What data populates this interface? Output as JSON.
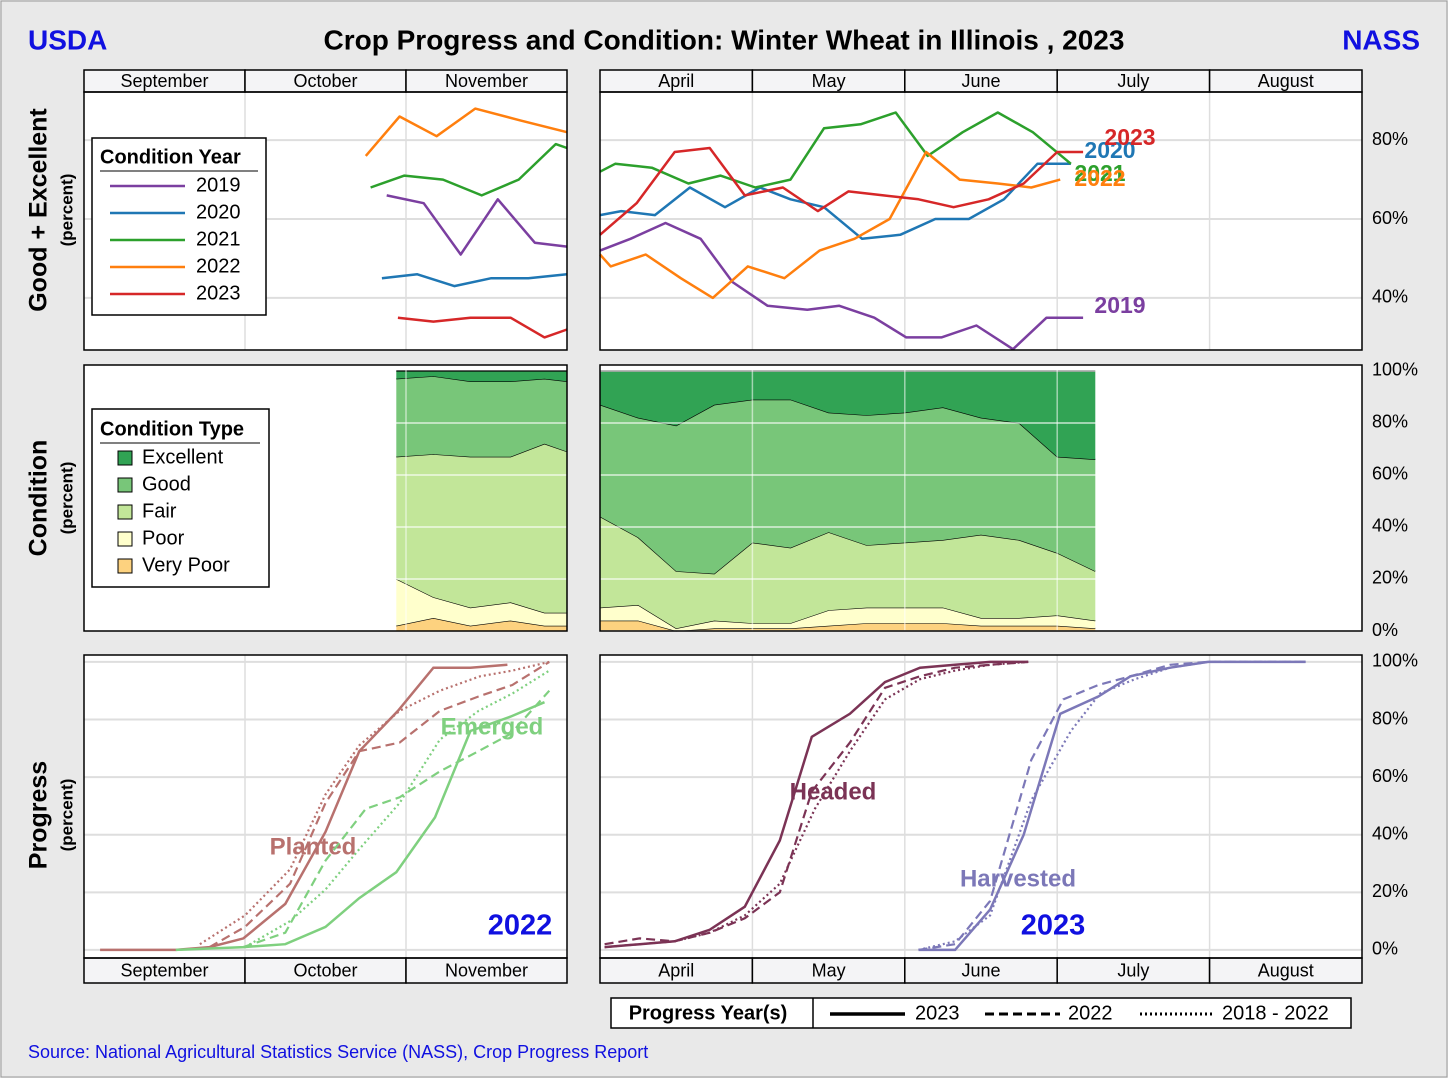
{
  "header": {
    "left": "USDA",
    "title": "Crop Progress and Condition: Winter Wheat in Illinois , 2023",
    "right": "NASS"
  },
  "source": "Source: National Agricultural Statistics Service (NASS), Crop Progress Report",
  "progress_legend": {
    "title": "Progress Year(s)",
    "entries": [
      {
        "label": "2023",
        "style": "solid"
      },
      {
        "label": "2022",
        "style": "dashed"
      },
      {
        "label": "2018 - 2022",
        "style": "dotted"
      }
    ]
  },
  "chart_data": [
    {
      "type": "line",
      "ylabel": "Good + Excellent",
      "ylabel_sub": "(percent)",
      "months": [
        "September",
        "October",
        "November"
      ],
      "legend_title": "Condition Year",
      "xlim": [
        0,
        3
      ],
      "ylim": [
        26.8,
        92.2
      ],
      "ygrid": [
        40,
        60,
        80
      ],
      "series": [
        {
          "name": "2019",
          "color": "#7b3fa0",
          "x": [
            1.88,
            2.11,
            2.34,
            2.57,
            2.8,
            3.0
          ],
          "values": [
            66,
            64,
            51,
            65,
            54,
            53
          ]
        },
        {
          "name": "2020",
          "color": "#1f77b4",
          "x": [
            1.85,
            2.07,
            2.3,
            2.53,
            2.76,
            3.0
          ],
          "values": [
            45,
            46,
            43,
            45,
            45,
            46
          ]
        },
        {
          "name": "2021",
          "color": "#2ca02c",
          "x": [
            1.78,
            1.99,
            2.23,
            2.47,
            2.7,
            2.93,
            3.0
          ],
          "values": [
            68,
            71,
            70,
            66,
            70,
            79,
            78
          ]
        },
        {
          "name": "2022",
          "color": "#ff7f0e",
          "x": [
            1.75,
            1.96,
            2.19,
            2.43,
            2.71,
            3.0
          ],
          "values": [
            76,
            86,
            81,
            88,
            85,
            82
          ]
        },
        {
          "name": "2023",
          "color": "#d62728",
          "x": [
            1.95,
            2.17,
            2.4,
            2.65,
            2.86,
            3.0
          ],
          "values": [
            35,
            34,
            35,
            35,
            30,
            32
          ]
        }
      ]
    },
    {
      "type": "line",
      "months": [
        "April",
        "May",
        "June",
        "July",
        "August"
      ],
      "xlim": [
        0,
        5
      ],
      "ylim": [
        26.8,
        92.2
      ],
      "yticks": [
        {
          "value": 40,
          "label": "40%"
        },
        {
          "value": 60,
          "label": "60%"
        },
        {
          "value": 80,
          "label": "80%"
        }
      ],
      "series": [
        {
          "name": "2019",
          "color": "#7b3fa0",
          "x": [
            0,
            0.2,
            0.43,
            0.66,
            0.87,
            1.1,
            1.36,
            1.57,
            1.8,
            2.01,
            2.24,
            2.47,
            2.71,
            2.93,
            3.17
          ],
          "values": [
            52,
            55,
            59,
            55,
            44,
            38,
            37,
            38,
            35,
            30,
            30,
            33,
            27,
            35,
            35
          ]
        },
        {
          "name": "2020",
          "color": "#1f77b4",
          "x": [
            0,
            0.14,
            0.36,
            0.59,
            0.82,
            1.05,
            1.25,
            1.47,
            1.72,
            1.97,
            2.2,
            2.42,
            2.65,
            2.87,
            3.09
          ],
          "values": [
            61,
            62,
            61,
            68,
            63,
            68,
            65,
            63,
            55,
            56,
            60,
            60,
            65,
            74,
            74
          ]
        },
        {
          "name": "2021",
          "color": "#2ca02c",
          "x": [
            0,
            0.1,
            0.34,
            0.58,
            0.79,
            1.02,
            1.25,
            1.47,
            1.71,
            1.94,
            2.15,
            2.38,
            2.61,
            2.84,
            3.09
          ],
          "values": [
            72,
            74,
            73,
            69,
            71,
            68,
            70,
            83,
            84,
            87,
            76,
            82,
            87,
            82,
            74
          ]
        },
        {
          "name": "2022",
          "color": "#ff7f0e",
          "x": [
            0,
            0.07,
            0.3,
            0.53,
            0.74,
            0.97,
            1.21,
            1.44,
            1.67,
            1.9,
            2.14,
            2.36,
            2.61,
            2.83,
            3.02
          ],
          "values": [
            51,
            48,
            51,
            45,
            40,
            48,
            45,
            52,
            55,
            60,
            77,
            70,
            69,
            68,
            70
          ]
        },
        {
          "name": "2023",
          "color": "#d62728",
          "x": [
            0,
            0.24,
            0.49,
            0.72,
            0.95,
            1.2,
            1.43,
            1.63,
            1.86,
            2.09,
            2.32,
            2.55,
            2.78,
            3.0,
            3.17
          ],
          "values": [
            56,
            64,
            77,
            78,
            66,
            68,
            62,
            67,
            66,
            65,
            63,
            65,
            69,
            77,
            77
          ]
        }
      ]
    },
    {
      "type": "stacked_area",
      "ylabel": "Condition",
      "ylabel_sub": "(percent)",
      "legend_title": "Condition Type",
      "xlim": [
        0,
        3
      ],
      "ylim": [
        0,
        102.3
      ],
      "ygrid": [
        20,
        40,
        60,
        80
      ],
      "x": [
        1.94,
        2.17,
        2.4,
        2.65,
        2.86,
        3.0
      ],
      "series": [
        {
          "name": "Excellent",
          "color": "#31a354",
          "values": [
            3,
            2,
            4,
            4,
            3,
            4
          ]
        },
        {
          "name": "Good",
          "color": "#78c679",
          "values": [
            30,
            30,
            29,
            29,
            25,
            27
          ]
        },
        {
          "name": "Fair",
          "color": "#c2e699",
          "values": [
            47,
            55,
            58,
            56,
            65,
            62
          ]
        },
        {
          "name": "Poor",
          "color": "#ffffcc",
          "values": [
            18,
            8,
            7,
            7,
            5,
            5
          ]
        },
        {
          "name": "Very Poor",
          "color": "#fdd27f",
          "values": [
            2,
            5,
            2,
            4,
            2,
            2
          ]
        }
      ]
    },
    {
      "type": "stacked_area",
      "xlim": [
        0,
        5
      ],
      "ylim": [
        0,
        102.3
      ],
      "yticks": [
        {
          "value": 0,
          "label": "0%"
        },
        {
          "value": 20,
          "label": "20%"
        },
        {
          "value": 40,
          "label": "40%"
        },
        {
          "value": 60,
          "label": "60%"
        },
        {
          "value": 80,
          "label": "80%"
        },
        {
          "value": 100,
          "label": "100%"
        }
      ],
      "x": [
        0,
        0.25,
        0.5,
        0.75,
        1.0,
        1.25,
        1.5,
        1.75,
        2.0,
        2.25,
        2.5,
        2.75,
        3.0,
        3.25
      ],
      "series": [
        {
          "color": "#31a354",
          "values": [
            13,
            18,
            21,
            13,
            11,
            11,
            16,
            17,
            16,
            14,
            18,
            20,
            33,
            34
          ]
        },
        {
          "color": "#78c679",
          "values": [
            43,
            46,
            56,
            65,
            55,
            57,
            46,
            50,
            50,
            51,
            45,
            45,
            37,
            43
          ]
        },
        {
          "color": "#c2e699",
          "values": [
            35,
            26,
            22,
            18,
            31,
            29,
            30,
            24,
            25,
            26,
            32,
            30,
            24,
            19
          ]
        },
        {
          "color": "#ffffcc",
          "values": [
            5,
            6,
            1,
            3,
            2,
            2,
            6,
            6,
            6,
            6,
            3,
            3,
            4,
            3
          ]
        },
        {
          "color": "#fdd27f",
          "values": [
            4,
            4,
            0,
            1,
            1,
            1,
            2,
            3,
            3,
            3,
            2,
            2,
            2,
            1
          ]
        }
      ]
    },
    {
      "type": "progress",
      "ylabel": "Progress",
      "ylabel_sub": "(percent)",
      "months": [
        "September",
        "October",
        "November"
      ],
      "season_label": "2022",
      "xlim": [
        0,
        3
      ],
      "ylim": [
        -2.8,
        102.4
      ],
      "ygrid": [
        0,
        20,
        40,
        60,
        80,
        100
      ],
      "series": [
        {
          "name": "Planted",
          "color": "#b8716e",
          "lines": [
            {
              "style": "solid",
              "x": [
                0.1,
                0.57,
                0.78,
                0.99,
                1.25,
                1.5,
                1.71,
                1.95,
                2.17,
                2.4,
                2.63
              ],
              "values": [
                0,
                0,
                1,
                4,
                16,
                41,
                69,
                83,
                98,
                98,
                99
              ]
            },
            {
              "style": "dashed",
              "x": [
                0.78,
                1.0,
                1.28,
                1.5,
                1.71,
                1.96,
                2.21,
                2.45,
                2.66,
                2.89
              ],
              "values": [
                1,
                8,
                23,
                51,
                69,
                72,
                83,
                88,
                92,
                100
              ]
            },
            {
              "style": "dotted",
              "x": [
                0.72,
                1.0,
                1.28,
                1.5,
                1.71,
                1.96,
                2.21,
                2.46,
                2.66,
                2.89
              ],
              "values": [
                2,
                12,
                28,
                54,
                71,
                83,
                90,
                95,
                97,
                100
              ]
            }
          ]
        },
        {
          "name": "Emerged",
          "color": "#7fd07f",
          "lines": [
            {
              "style": "solid",
              "x": [
                0.57,
                0.99,
                1.25,
                1.5,
                1.71,
                1.94,
                2.18,
                2.4,
                2.65,
                2.86
              ],
              "values": [
                0,
                1,
                2,
                8,
                18,
                27,
                46,
                76,
                81,
                86
              ]
            },
            {
              "style": "dashed",
              "x": [
                0.99,
                1.25,
                1.5,
                1.75,
                1.96,
                2.21,
                2.45,
                2.65,
                2.89
              ],
              "values": [
                1,
                6,
                31,
                49,
                53,
                62,
                69,
                75,
                90
              ]
            },
            {
              "style": "dotted",
              "x": [
                1.0,
                1.28,
                1.5,
                1.71,
                1.96,
                2.21,
                2.45,
                2.66,
                2.89
              ],
              "values": [
                1,
                10,
                21,
                35,
                51,
                73,
                83,
                89,
                97
              ]
            }
          ]
        }
      ]
    },
    {
      "type": "progress",
      "months": [
        "April",
        "May",
        "June",
        "July",
        "August"
      ],
      "season_label": "2023",
      "xlim": [
        0,
        5
      ],
      "ylim": [
        -2.8,
        102.4
      ],
      "yticks": [
        {
          "value": 0,
          "label": "0%"
        },
        {
          "value": 20,
          "label": "20%"
        },
        {
          "value": 40,
          "label": "40%"
        },
        {
          "value": 60,
          "label": "60%"
        },
        {
          "value": 80,
          "label": "80%"
        },
        {
          "value": 100,
          "label": "100%"
        }
      ],
      "series": [
        {
          "name": "Headed",
          "color": "#7b3355",
          "lines": [
            {
              "style": "solid",
              "x": [
                0.03,
                0.26,
                0.49,
                0.72,
                0.95,
                1.18,
                1.39,
                1.64,
                1.87,
                2.1,
                2.33,
                2.56,
                2.81
              ],
              "values": [
                1,
                2,
                3,
                7,
                15,
                38,
                74,
                82,
                93,
                98,
                99,
                100,
                100
              ]
            },
            {
              "style": "dashed",
              "x": [
                0.03,
                0.26,
                0.49,
                0.72,
                0.95,
                1.18,
                1.39,
                1.64,
                1.87,
                2.1,
                2.33,
                2.56,
                2.81
              ],
              "values": [
                2,
                4,
                3,
                6,
                11,
                20,
                55,
                72,
                91,
                95,
                98,
                99,
                100
              ]
            },
            {
              "style": "dotted",
              "x": [
                0.03,
                0.26,
                0.49,
                0.72,
                0.95,
                1.18,
                1.41,
                1.64,
                1.87,
                2.1,
                2.33,
                2.56,
                2.81
              ],
              "values": [
                1,
                2,
                3,
                6,
                12,
                23,
                49,
                69,
                87,
                94,
                97,
                99,
                100
              ]
            }
          ]
        },
        {
          "name": "Harvested",
          "color": "#7c78b8",
          "lines": [
            {
              "style": "solid",
              "x": [
                2.09,
                2.33,
                2.56,
                2.78,
                3.02,
                3.27,
                3.48,
                3.74,
                3.99,
                4.23,
                4.63
              ],
              "values": [
                0,
                0,
                14,
                40,
                82,
                88,
                95,
                98,
                100,
                100,
                100
              ]
            },
            {
              "style": "dashed",
              "x": [
                2.09,
                2.33,
                2.56,
                2.83,
                3.04,
                3.27,
                3.48,
                3.74,
                3.99,
                4.23,
                4.63
              ],
              "values": [
                0,
                2,
                17,
                66,
                87,
                92,
                95,
                99,
                100,
                100,
                100
              ]
            },
            {
              "style": "dotted",
              "x": [
                2.09,
                2.33,
                2.56,
                2.83,
                3.09,
                3.28,
                3.51,
                3.74,
                3.99,
                4.23,
                4.63
              ],
              "values": [
                0,
                3,
                12,
                52,
                76,
                89,
                94,
                98,
                100,
                100,
                100
              ]
            }
          ]
        }
      ]
    }
  ]
}
